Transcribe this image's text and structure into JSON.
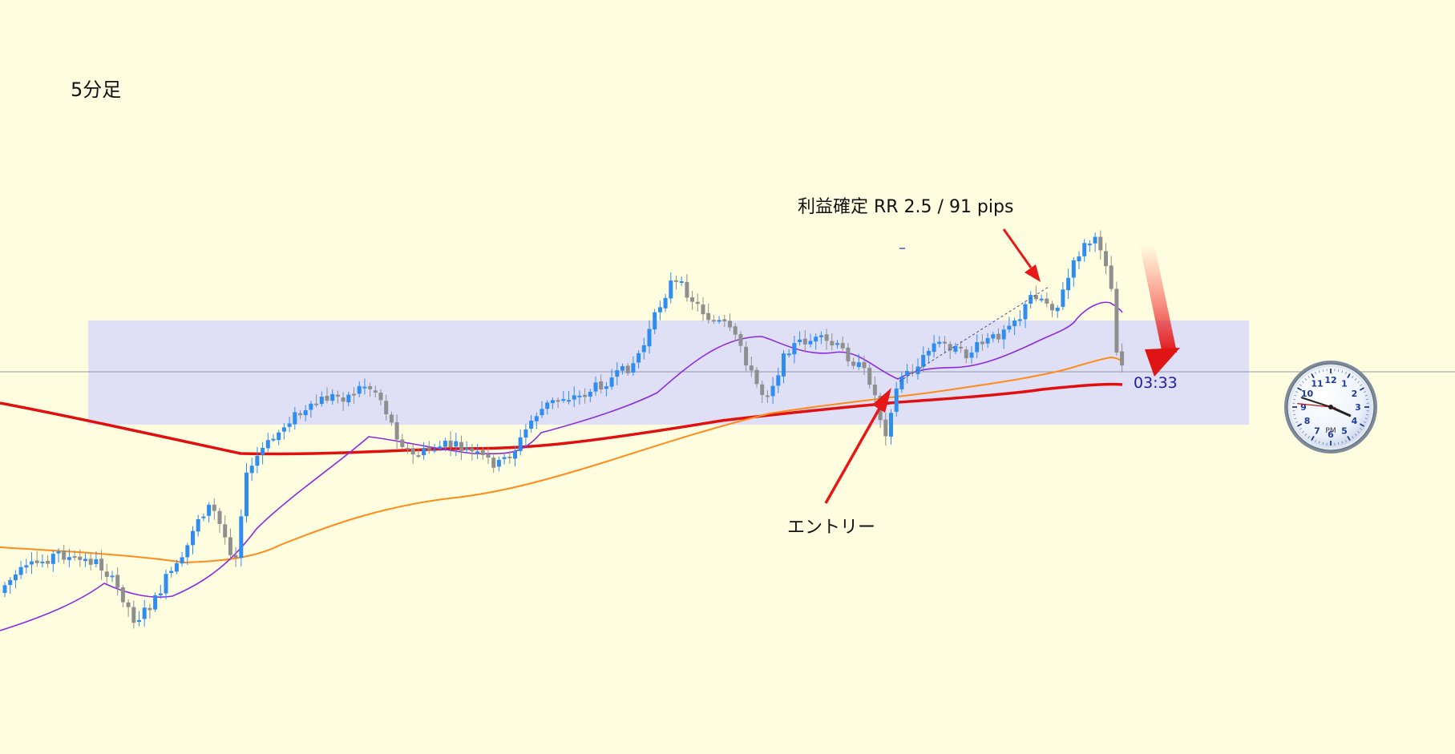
{
  "chart_data": {
    "type": "candlestick",
    "title": "5分足",
    "countdown": "03:33",
    "annotations": {
      "profit": "利益確定 RR 2.5 / 91 pips",
      "entry": "エントリー"
    },
    "clock": {
      "numbers": [
        "12",
        "1",
        "2",
        "3",
        "4",
        "5",
        "6",
        "7",
        "8",
        "9",
        "10",
        "11"
      ],
      "period": "PM",
      "time": "15:48"
    },
    "colors": {
      "background": "#fffde0",
      "bull": "#2f8cf0",
      "bear": "#8f8f8f",
      "zone": "#dcdcf8",
      "ma_fast": "#8a2be2",
      "ma_mid": "#ff8c1a",
      "ma_slow": "#e01010",
      "arrow": "#e81818",
      "countdown": "#2020a0"
    }
  }
}
